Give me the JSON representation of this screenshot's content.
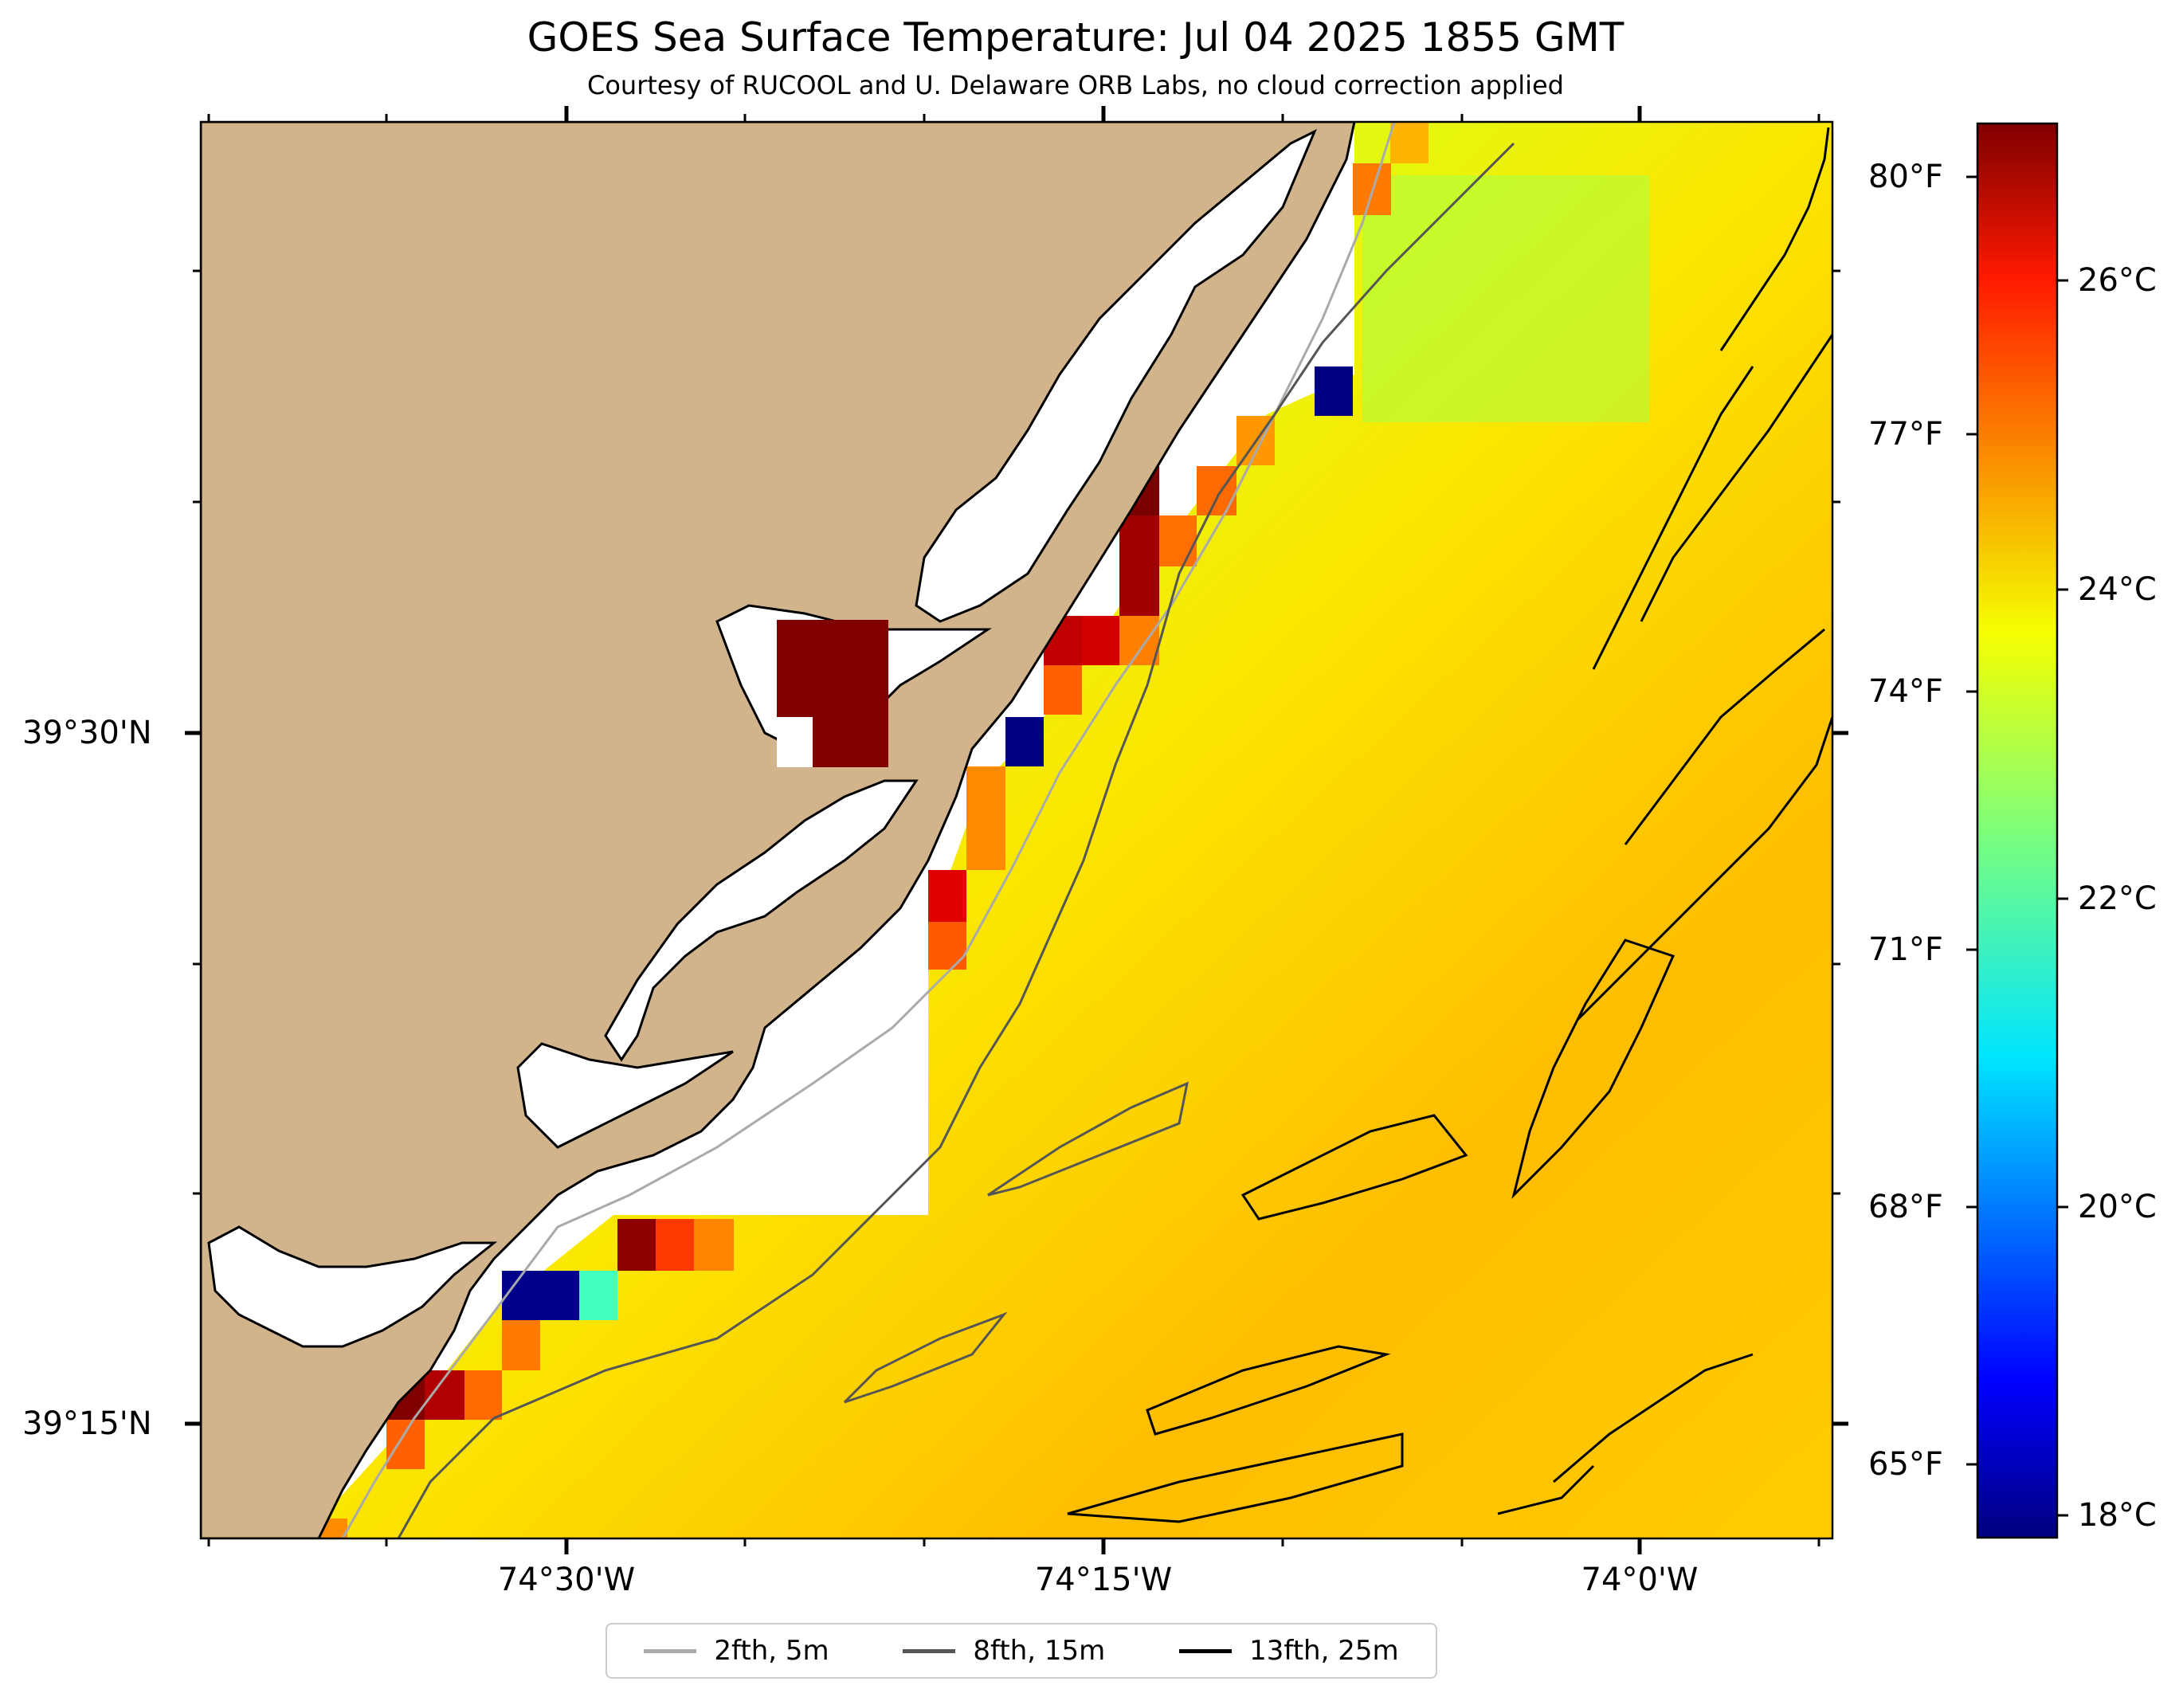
{
  "title": "GOES Sea Surface Temperature: Jul 04 2025 1855 GMT",
  "subtitle": "Courtesy of RUCOOL and U. Delaware ORB Labs, no cloud correction applied",
  "map": {
    "lon_labels": [
      "74°30'W",
      "74°15'W",
      "74°0'W"
    ],
    "lat_labels": [
      "39°30'N",
      "39°15'N"
    ],
    "colors": {
      "land": "#d2b48c",
      "coastline": "#000000",
      "water_nodata": "#ffffff"
    }
  },
  "colorbar": {
    "colormap": "jet",
    "celsius_labels": [
      "26°C",
      "24°C",
      "22°C",
      "20°C",
      "18°C"
    ],
    "fahrenheit_labels": [
      "80°F",
      "77°F",
      "74°F",
      "71°F",
      "68°F",
      "65°F"
    ]
  },
  "legend": [
    {
      "label": "2fth, 5m",
      "color": "#aaaaaa"
    },
    {
      "label": "8fth, 15m",
      "color": "#555555"
    },
    {
      "label": "13fth, 25m",
      "color": "#000000"
    }
  ]
}
